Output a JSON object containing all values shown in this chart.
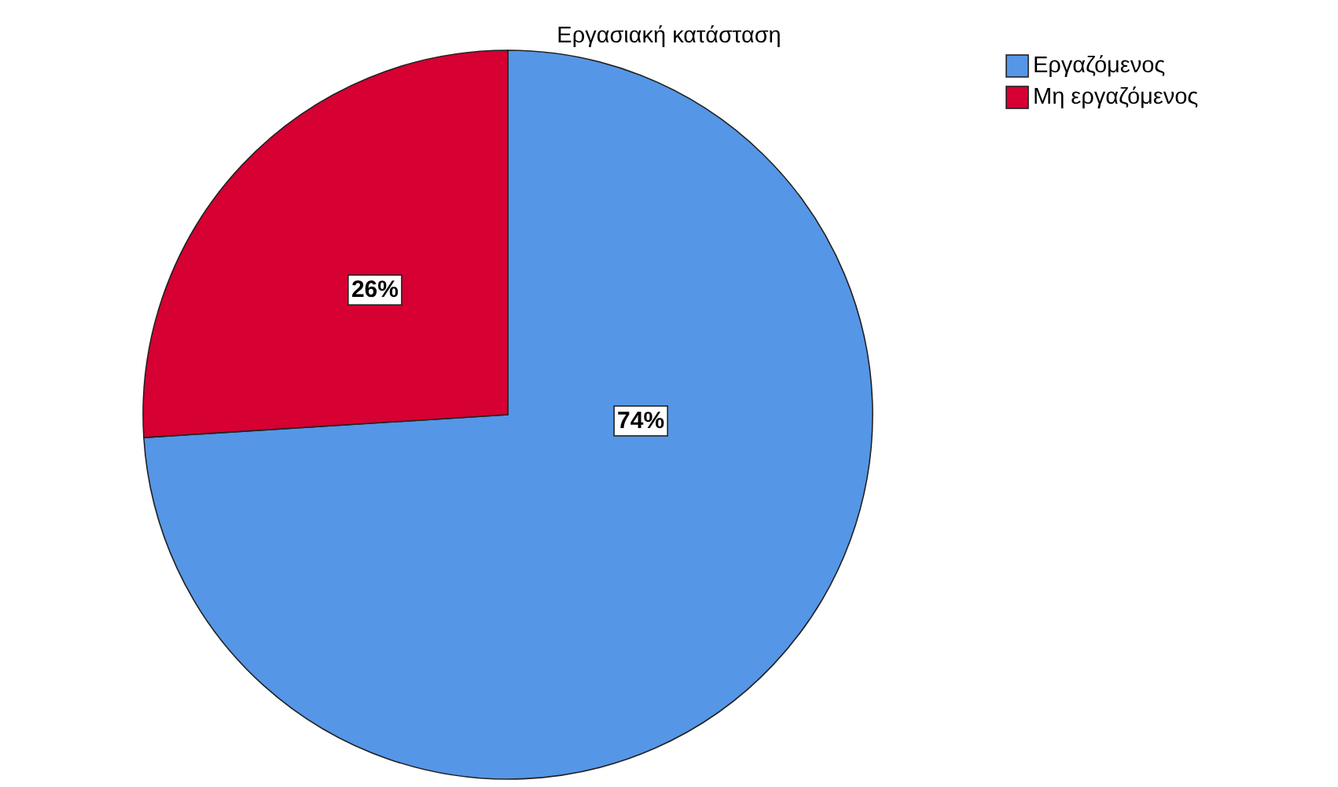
{
  "chart_data": {
    "type": "pie",
    "title": "Εργασιακή κατάσταση",
    "categories": [
      "Εργαζόμενος",
      "Μη εργαζόμενος"
    ],
    "values": [
      74,
      26
    ],
    "value_labels": [
      "74%",
      "26%"
    ],
    "colors": [
      "#5596e6",
      "#d60032"
    ],
    "legend": "top right"
  }
}
